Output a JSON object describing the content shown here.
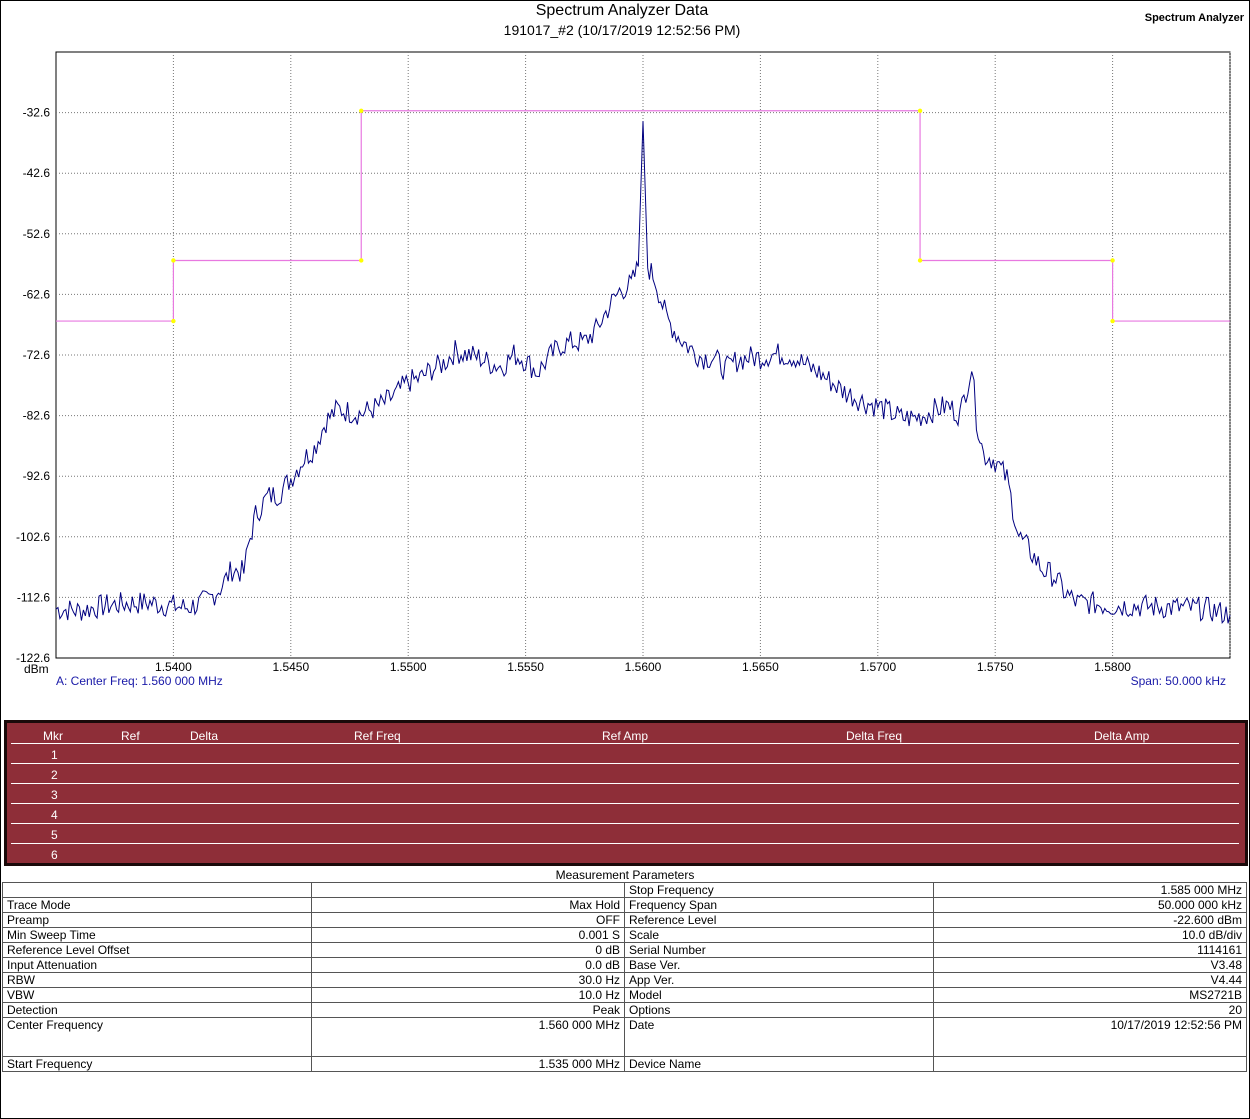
{
  "header": {
    "title": "Spectrum Analyzer Data",
    "subtitle": "191017_#2 (10/17/2019 12:52:56 PM)",
    "instrument": "Spectrum Analyzer"
  },
  "chart_data": {
    "type": "line",
    "y_unit": "dBm",
    "ylim": [
      -122.6,
      -22.6
    ],
    "xlim": [
      1.535,
      1.585
    ],
    "y_ticks": [
      "-32.6",
      "-42.6",
      "-52.6",
      "-62.6",
      "-72.6",
      "-82.6",
      "-92.6",
      "-102.6",
      "-112.6",
      "-122.6"
    ],
    "x_ticks": [
      "1.5400",
      "1.5450",
      "1.5500",
      "1.5550",
      "1.5600",
      "1.5650",
      "1.5700",
      "1.5750",
      "1.5800"
    ],
    "x_tick_values": [
      1.54,
      1.545,
      1.55,
      1.555,
      1.56,
      1.565,
      1.57,
      1.575,
      1.58
    ],
    "grid": true,
    "center_freq_label": "A: Center Freq: 1.560 000 MHz",
    "span_label": "Span: 50.000 kHz",
    "limit_line": {
      "color": "#e879e0",
      "points": [
        [
          1.535,
          -67.0
        ],
        [
          1.54,
          -67.0
        ],
        [
          1.54,
          -57.0
        ],
        [
          1.548,
          -57.0
        ],
        [
          1.548,
          -32.3
        ],
        [
          1.5718,
          -32.3
        ],
        [
          1.5718,
          -57.0
        ],
        [
          1.58,
          -57.0
        ],
        [
          1.58,
          -67.0
        ],
        [
          1.585,
          -67.0
        ]
      ],
      "vertex_color": "#ffff00"
    },
    "series": [
      {
        "color": "#000080",
        "x": [
          1.535,
          1.536,
          1.537,
          1.538,
          1.539,
          1.5395,
          1.54,
          1.5405,
          1.541,
          1.5415,
          1.542,
          1.5425,
          1.543,
          1.5432,
          1.5435,
          1.544,
          1.5445,
          1.545,
          1.5455,
          1.546,
          1.5465,
          1.547,
          1.5475,
          1.548,
          1.5485,
          1.549,
          1.5495,
          1.55,
          1.5505,
          1.551,
          1.5515,
          1.552,
          1.5525,
          1.553,
          1.5535,
          1.554,
          1.5545,
          1.555,
          1.5555,
          1.556,
          1.5565,
          1.557,
          1.5575,
          1.558,
          1.5585,
          1.559,
          1.5595,
          1.5598,
          1.56,
          1.5602,
          1.5605,
          1.561,
          1.5615,
          1.562,
          1.5625,
          1.563,
          1.5635,
          1.564,
          1.5645,
          1.565,
          1.5655,
          1.566,
          1.5665,
          1.567,
          1.5675,
          1.568,
          1.5685,
          1.569,
          1.5695,
          1.57,
          1.5705,
          1.571,
          1.5715,
          1.572,
          1.5725,
          1.573,
          1.5735,
          1.574,
          1.5742,
          1.5745,
          1.575,
          1.5755,
          1.576,
          1.5765,
          1.577,
          1.5775,
          1.578,
          1.5785,
          1.579,
          1.5795,
          1.58,
          1.581,
          1.582,
          1.583,
          1.584,
          1.585
        ],
        "values": [
          -114.5,
          -114.8,
          -114.0,
          -113.6,
          -113.5,
          -113.8,
          -114.0,
          -114.3,
          -113.8,
          -113.0,
          -111.0,
          -108.0,
          -108.5,
          -104.0,
          -99.0,
          -96.0,
          -95.5,
          -93.0,
          -90.0,
          -88.0,
          -83.5,
          -81.5,
          -82.0,
          -82.3,
          -81.5,
          -80.5,
          -79.0,
          -77.0,
          -76.5,
          -75.0,
          -74.0,
          -72.0,
          -72.5,
          -73.0,
          -74.0,
          -74.5,
          -72.5,
          -73.5,
          -75.5,
          -73.0,
          -71.0,
          -70.5,
          -70.5,
          -68.5,
          -65.0,
          -62.0,
          -61.0,
          -58.0,
          -34.0,
          -58.0,
          -60.0,
          -66.5,
          -69.5,
          -71.5,
          -73.0,
          -73.0,
          -75.0,
          -73.5,
          -73.0,
          -73.0,
          -72.5,
          -72.5,
          -73.0,
          -74.5,
          -75.5,
          -77.0,
          -78.5,
          -79.5,
          -80.5,
          -81.0,
          -82.0,
          -83.0,
          -83.0,
          -82.5,
          -81.5,
          -81.0,
          -82.5,
          -74.5,
          -83.0,
          -89.0,
          -90.0,
          -93.0,
          -102.5,
          -105.0,
          -108.0,
          -109.0,
          -112.0,
          -113.5,
          -113.5,
          -113.8,
          -114.0,
          -114.0,
          -114.2,
          -114.3,
          -114.5,
          -115.5
        ]
      }
    ]
  },
  "markers": {
    "headers": [
      "Mkr",
      "Ref",
      "Delta",
      "Ref Freq",
      "Ref Amp",
      "Delta Freq",
      "Delta Amp"
    ],
    "rows": [
      "1",
      "2",
      "3",
      "4",
      "5",
      "6"
    ]
  },
  "params": {
    "title": "Measurement Parameters",
    "left": [
      {
        "label": "",
        "value": ""
      },
      {
        "label": "Trace Mode",
        "value": "Max Hold"
      },
      {
        "label": "Preamp",
        "value": "OFF"
      },
      {
        "label": "Min Sweep Time",
        "value": "0.001 S"
      },
      {
        "label": "Reference Level Offset",
        "value": "0 dB"
      },
      {
        "label": "Input Attenuation",
        "value": "0.0 dB"
      },
      {
        "label": "RBW",
        "value": "30.0 Hz"
      },
      {
        "label": "VBW",
        "value": "10.0 Hz"
      },
      {
        "label": "Detection",
        "value": "Peak"
      },
      {
        "label": "Center Frequency",
        "value": "1.560 000 MHz"
      },
      {
        "label": "Start Frequency",
        "value": "1.535 000 MHz"
      }
    ],
    "right": [
      {
        "label": "Stop Frequency",
        "value": "1.585 000 MHz"
      },
      {
        "label": "Frequency Span",
        "value": "50.000 000 kHz"
      },
      {
        "label": "Reference Level",
        "value": "-22.600  dBm"
      },
      {
        "label": "Scale",
        "value": "10.0  dB/div"
      },
      {
        "label": "Serial Number",
        "value": "1114161"
      },
      {
        "label": "Base Ver.",
        "value": "V3.48"
      },
      {
        "label": "App Ver.",
        "value": "V4.44"
      },
      {
        "label": "Model",
        "value": "MS2721B"
      },
      {
        "label": "Options",
        "value": "20"
      },
      {
        "label": "Date",
        "value": "10/17/2019 12:52:56 PM"
      },
      {
        "label": "Device Name",
        "value": ""
      }
    ]
  }
}
